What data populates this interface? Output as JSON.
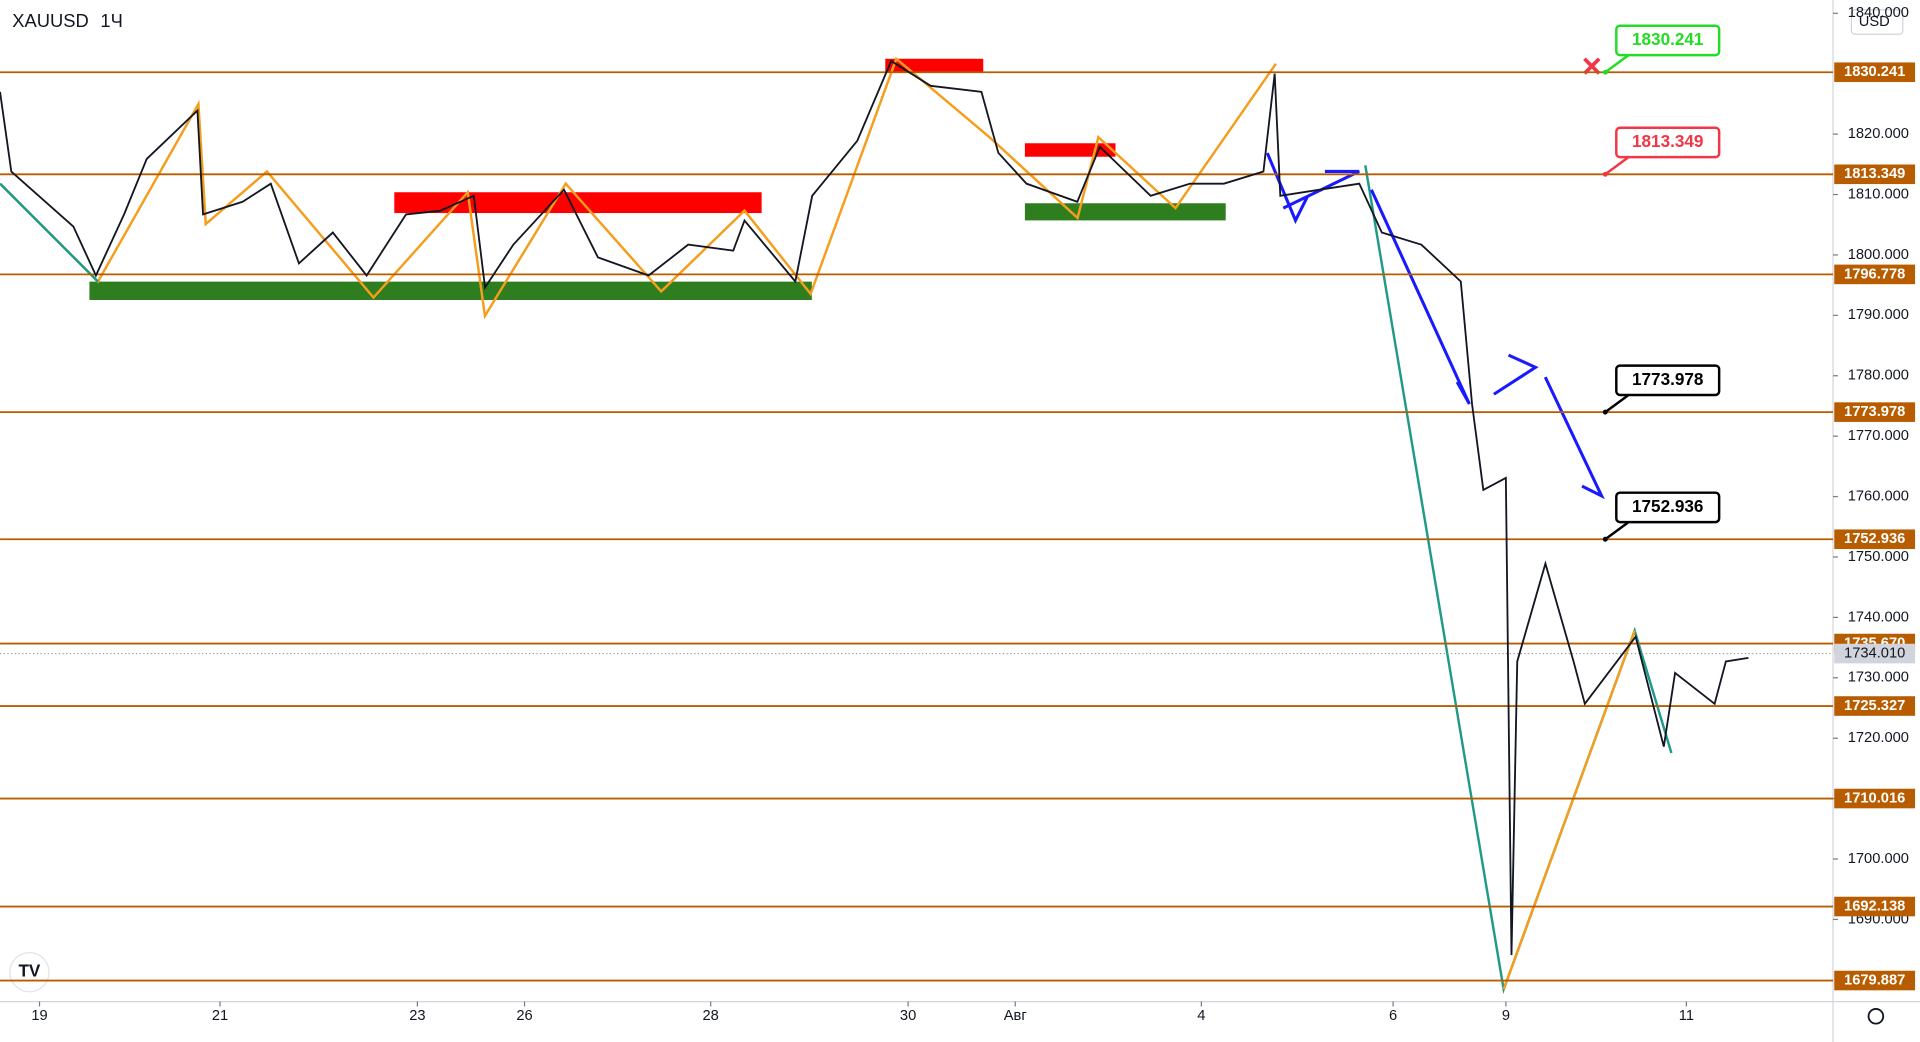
{
  "chart_data": {
    "type": "line",
    "title": "XAUUSD",
    "interval": "1Ч",
    "currency": "USD",
    "x": [
      0,
      2,
      13,
      17,
      22,
      26,
      35,
      36,
      43,
      48,
      53,
      59,
      65,
      72,
      78,
      84,
      86,
      91,
      100,
      106,
      115,
      122,
      130,
      132,
      141,
      144,
      152,
      158,
      165,
      174,
      177,
      182,
      191,
      195,
      204,
      211,
      217,
      224,
      226,
      227,
      234,
      241,
      245,
      252,
      259,
      261,
      263,
      267,
      268,
      269,
      274,
      279,
      281,
      290,
      295,
      297,
      304,
      306,
      310
    ],
    "values": [
      1827,
      1813.8,
      1804.7,
      1796.6,
      1806.7,
      1815.9,
      1823.9,
      1806.7,
      1808.8,
      1811.8,
      1798.6,
      1803.7,
      1796.6,
      1806.7,
      1807.3,
      1809.8,
      1794.6,
      1801.7,
      1810.8,
      1799.6,
      1796.6,
      1801.7,
      1800.7,
      1805.7,
      1795.6,
      1809.8,
      1818.9,
      1832.1,
      1828,
      1827,
      1816.9,
      1811.8,
      1808.8,
      1817.9,
      1809.8,
      1811.8,
      1811.8,
      1813.8,
      1830,
      1809.8,
      1810.8,
      1811.8,
      1803.7,
      1801.7,
      1795.6,
      1775.3,
      1761.1,
      1763.1,
      1684.1,
      1732.7,
      1748.9,
      1732.7,
      1725.7,
      1736.8,
      1718.6,
      1730.8,
      1725.7,
      1732.7,
      1733.3
    ],
    "color": "#131722",
    "xlim": [
      0,
      325
    ],
    "ylim": [
      1676.4,
      1842.2
    ],
    "xticks": [
      {
        "value": 7,
        "label": "19"
      },
      {
        "value": 39,
        "label": "21"
      },
      {
        "value": 74,
        "label": "23"
      },
      {
        "value": 93,
        "label": "26"
      },
      {
        "value": 126,
        "label": "28"
      },
      {
        "value": 161,
        "label": "30"
      },
      {
        "value": 180,
        "label": "Авг"
      },
      {
        "value": 213,
        "label": "4"
      },
      {
        "value": 247,
        "label": "6"
      },
      {
        "value": 267,
        "label": "9"
      },
      {
        "value": 299,
        "label": "11"
      }
    ],
    "yticks": [
      {
        "value": 1690,
        "label": "1690.000"
      },
      {
        "value": 1700,
        "label": "1700.000"
      },
      {
        "value": 1710,
        "label": "1710.000"
      },
      {
        "value": 1720,
        "label": "1720.000"
      },
      {
        "value": 1730,
        "label": "1730.000"
      },
      {
        "value": 1740,
        "label": "1740.000"
      },
      {
        "value": 1750,
        "label": "1750.000"
      },
      {
        "value": 1760,
        "label": "1760.000"
      },
      {
        "value": 1770,
        "label": "1770.000"
      },
      {
        "value": 1780,
        "label": "1780.000"
      },
      {
        "value": 1790,
        "label": "1790.000"
      },
      {
        "value": 1800,
        "label": "1800.000"
      },
      {
        "value": 1810,
        "label": "1810.000"
      },
      {
        "value": 1820,
        "label": "1820.000"
      },
      {
        "value": 1840,
        "label": "1840.000"
      }
    ],
    "levels": [
      {
        "value": 1830.241,
        "label": "1830.241"
      },
      {
        "value": 1813.349,
        "label": "1813.349"
      },
      {
        "value": 1796.778,
        "label": "1796.778"
      },
      {
        "value": 1773.978,
        "label": "1773.978"
      },
      {
        "value": 1752.936,
        "label": "1752.936"
      },
      {
        "value": 1735.67,
        "label": "1735.670"
      },
      {
        "value": 1725.327,
        "label": "1725.327"
      },
      {
        "value": 1710.016,
        "label": "1710.016"
      },
      {
        "value": 1692.138,
        "label": "1692.138"
      },
      {
        "value": 1679.887,
        "label": "1679.887"
      }
    ],
    "level_color": "#b85c00",
    "callouts": [
      {
        "value": 1830.241,
        "label": "1830.241",
        "color": "#22dd22"
      },
      {
        "value": 1813.349,
        "label": "1813.349",
        "color": "#f23645"
      },
      {
        "value": 1773.978,
        "label": "1773.978",
        "color": "#000000"
      },
      {
        "value": 1752.936,
        "label": "1752.936",
        "color": "#000000"
      }
    ],
    "last_price": {
      "value": 1734.01,
      "label": "1734.010"
    }
  }
}
